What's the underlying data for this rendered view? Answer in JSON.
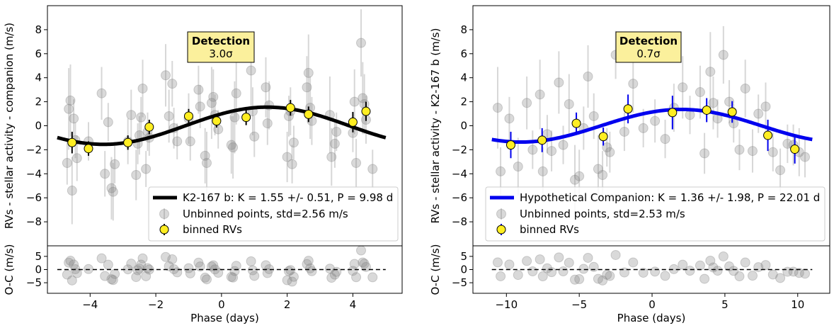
{
  "chart_data": [
    {
      "type": "scatter",
      "panel": "left",
      "ylabel": "RVs  - stellar activity - companion (m/s)",
      "residual_ylabel": "O-C (m/s)",
      "xlabel": "Phase (days)",
      "xlim": [
        -5.3,
        5.5
      ],
      "ylim": [
        -10,
        10
      ],
      "residual_ylim": [
        -9,
        9
      ],
      "xticks": [
        -4,
        -2,
        0,
        2,
        4
      ],
      "yticks": [
        -8,
        -6,
        -4,
        -2,
        0,
        2,
        4,
        6,
        8
      ],
      "residual_yticks": [
        -5,
        0,
        5
      ],
      "tick_labels": {
        "x": [
          "−4",
          "−2",
          "0",
          "2",
          "4"
        ],
        "y": [
          "−8",
          "−6",
          "−4",
          "−2",
          "0",
          "2",
          "4",
          "6",
          "8"
        ],
        "residual_y": [
          "−5",
          "0",
          "5"
        ]
      },
      "detection": {
        "title": "Detection",
        "value": "3.0σ"
      },
      "legend": {
        "placement": "lower-right",
        "entries": [
          "K2-167 b: K = 1.55 +/- 0.51, P = 9.98 d",
          "Unbinned points, std=2.56 m/s",
          "binned RVs"
        ]
      },
      "model": {
        "K": 1.55,
        "P": 9.98,
        "phase_offset": -1.1,
        "x_range": [
          -5.0,
          5.0
        ],
        "color": "#000000"
      },
      "binned": {
        "color": "#ffee22",
        "errorbar_color": "#000000",
        "x": [
          -4.55,
          -4.05,
          -2.85,
          -2.2,
          -1.0,
          -0.15,
          0.75,
          2.1,
          2.65,
          4.0,
          4.4
        ],
        "y": [
          -1.4,
          -1.9,
          -1.4,
          -0.1,
          0.8,
          0.4,
          0.7,
          1.5,
          0.95,
          0.3,
          1.2
        ],
        "err": [
          0.9,
          0.6,
          0.6,
          0.6,
          0.6,
          0.55,
          0.65,
          0.65,
          0.65,
          0.85,
          0.8
        ]
      },
      "unbinned": {
        "color": "#808080",
        "x": [
          -4.7,
          -4.65,
          -4.6,
          -4.55,
          -4.5,
          -4.45,
          -4.4,
          -4.05,
          -3.65,
          -3.55,
          -3.45,
          -3.35,
          -3.3,
          -3.25,
          -2.85,
          -2.75,
          -2.6,
          -2.55,
          -2.5,
          -2.45,
          -2.4,
          -2.3,
          -2.25,
          -2.2,
          -1.7,
          -1.6,
          -1.5,
          -1.45,
          -1.35,
          -1.0,
          -0.95,
          -0.7,
          -0.65,
          -0.5,
          -0.45,
          -0.3,
          -0.25,
          -0.2,
          -0.1,
          0.3,
          0.35,
          0.4,
          0.45,
          0.9,
          0.95,
          1.0,
          1.35,
          1.4,
          1.45,
          2.0,
          2.05,
          2.1,
          2.15,
          2.2,
          2.6,
          2.65,
          2.7,
          2.75,
          3.3,
          3.35,
          3.45,
          3.5,
          4.0,
          4.05,
          4.1,
          4.25,
          4.3,
          4.35,
          4.4,
          4.6
        ],
        "y": [
          -3.1,
          1.4,
          2.1,
          -5.4,
          0.6,
          -1.2,
          -2.7,
          -1.3,
          2.7,
          -4.0,
          0.3,
          -5.2,
          -5.5,
          -3.2,
          -1.3,
          0.9,
          -4.1,
          -1.5,
          -0.8,
          0.7,
          3.1,
          -3.6,
          -0.5,
          -1.0,
          4.2,
          0.8,
          3.5,
          -0.2,
          -1.3,
          0.6,
          -1.3,
          3.0,
          1.6,
          -2.5,
          -3.1,
          1.9,
          2.4,
          0.9,
          -0.3,
          -1.6,
          -1.8,
          0.7,
          2.7,
          4.6,
          1.2,
          -0.9,
          3.2,
          0.2,
          1.7,
          -2.6,
          0.8,
          1.2,
          -3.2,
          -1.4,
          3.2,
          4.4,
          1.5,
          0.4,
          0.9,
          -2.6,
          -1.5,
          -0.5,
          -0.6,
          2.0,
          -3.1,
          6.9,
          2.3,
          1.8,
          0.5,
          -3.6
        ],
        "err": [
          1.8,
          3.4,
          3.0,
          2.8,
          1.6,
          1.5,
          1.9,
          1.6,
          2.2,
          1.9,
          1.6,
          2.6,
          2.4,
          1.6,
          1.9,
          2.1,
          2.1,
          1.7,
          1.6,
          1.7,
          2.4,
          1.5,
          1.6,
          1.5,
          2.6,
          2.2,
          1.9,
          1.7,
          1.5,
          2.1,
          1.6,
          2.0,
          1.8,
          2.3,
          2.6,
          3.0,
          2.3,
          1.7,
          1.6,
          2.4,
          2.6,
          3.0,
          2.6,
          3.0,
          2.0,
          1.7,
          2.5,
          1.8,
          2.0,
          2.1,
          1.7,
          2.0,
          1.6,
          1.4,
          2.6,
          3.2,
          2.6,
          2.0,
          3.2,
          2.4,
          2.0,
          1.6,
          1.6,
          2.7,
          2.0,
          2.8,
          3.0,
          2.5,
          2.0,
          1.6
        ]
      }
    },
    {
      "type": "scatter",
      "panel": "right",
      "ylabel": "RVs  - stellar activity - K2-167 b (m/s)",
      "residual_ylabel": "O-C (m/s)",
      "xlabel": "Phase (days)",
      "xlim": [
        -12.3,
        12.2
      ],
      "ylim": [
        -10,
        10
      ],
      "residual_ylim": [
        -9,
        9
      ],
      "xticks": [
        -10,
        -5,
        0,
        5,
        10
      ],
      "yticks": [
        -8,
        -6,
        -4,
        -2,
        0,
        2,
        4,
        6,
        8
      ],
      "residual_yticks": [
        -5,
        0,
        5
      ],
      "tick_labels": {
        "x": [
          "−10",
          "−5",
          "0",
          "5",
          "10"
        ],
        "y": [
          "−8",
          "−6",
          "−4",
          "−2",
          "0",
          "2",
          "4",
          "6",
          "8"
        ],
        "residual_y": [
          "−5",
          "0",
          "5"
        ]
      },
      "detection": {
        "title": "Detection",
        "value": "0.7σ"
      },
      "legend": {
        "placement": "lower-right",
        "entries": [
          "Hypothetical Companion: K = 1.36 +/- 1.98, P = 22.01 d",
          "Unbinned points, std=2.53 m/s",
          "binned RVs"
        ]
      },
      "model": {
        "K": 1.36,
        "P": 22.01,
        "phase_offset": -3.5,
        "x_range": [
          -11.0,
          11.0
        ],
        "color": "#0000ee"
      },
      "binned": {
        "color": "#ffee22",
        "errorbar_color": "#0000ee",
        "x": [
          -9.7,
          -7.55,
          -5.2,
          -3.35,
          -1.65,
          1.4,
          3.75,
          5.5,
          7.95,
          9.8
        ],
        "y": [
          -1.6,
          -1.2,
          0.2,
          -0.9,
          1.4,
          1.1,
          1.3,
          1.15,
          -0.8,
          -1.95
        ],
        "err": [
          1.1,
          1.0,
          0.9,
          0.75,
          1.2,
          1.4,
          1.0,
          0.9,
          1.3,
          1.2
        ],
        "extra_err": [
          0,
          0,
          0,
          0,
          0,
          0,
          0,
          0,
          0,
          0
        ]
      },
      "unbinned": {
        "color": "#808080",
        "x": [
          -10.6,
          -10.4,
          -9.8,
          -9.2,
          -8.6,
          -8.2,
          -7.7,
          -7.5,
          -7.2,
          -6.9,
          -6.4,
          -6.1,
          -5.7,
          -5.3,
          -5.0,
          -4.7,
          -4.4,
          -4.0,
          -3.7,
          -3.4,
          -3.1,
          -2.9,
          -2.5,
          -1.9,
          -1.3,
          -0.6,
          0.2,
          0.9,
          1.5,
          2.1,
          2.6,
          3.3,
          3.6,
          4.0,
          4.2,
          4.5,
          4.9,
          5.3,
          5.6,
          6.0,
          6.4,
          6.9,
          7.3,
          7.8,
          8.3,
          8.8,
          9.3,
          9.7,
          10.1,
          10.5
        ],
        "y": [
          1.5,
          -3.8,
          0.6,
          -3.4,
          1.9,
          -2.0,
          2.6,
          -3.8,
          -0.7,
          -2.1,
          3.6,
          -1.6,
          1.8,
          -4.5,
          -4.2,
          -0.2,
          4.1,
          0.8,
          -3.6,
          -4.1,
          -1.8,
          -2.2,
          5.9,
          -0.5,
          3.5,
          -0.2,
          0.4,
          -1.1,
          1.5,
          3.2,
          0.9,
          2.8,
          -2.3,
          4.5,
          1.9,
          0.6,
          5.9,
          2.0,
          0.2,
          -2.0,
          3.1,
          -2.1,
          1.0,
          1.6,
          -2.2,
          -3.7,
          -1.5,
          -1.6,
          -2.2,
          -2.6
        ],
        "err": [
          3.4,
          2.0,
          1.8,
          2.4,
          2.2,
          1.6,
          2.9,
          2.0,
          1.6,
          1.7,
          2.6,
          1.6,
          2.5,
          2.9,
          2.2,
          1.8,
          2.6,
          1.9,
          2.8,
          2.0,
          1.6,
          1.7,
          2.0,
          1.6,
          2.4,
          1.6,
          1.8,
          1.6,
          2.0,
          2.6,
          1.6,
          2.2,
          1.7,
          3.3,
          2.2,
          1.6,
          2.4,
          1.8,
          1.6,
          1.7,
          2.4,
          1.8,
          1.6,
          2.0,
          1.6,
          1.8,
          1.6,
          1.7,
          2.0,
          1.7
        ]
      }
    }
  ]
}
